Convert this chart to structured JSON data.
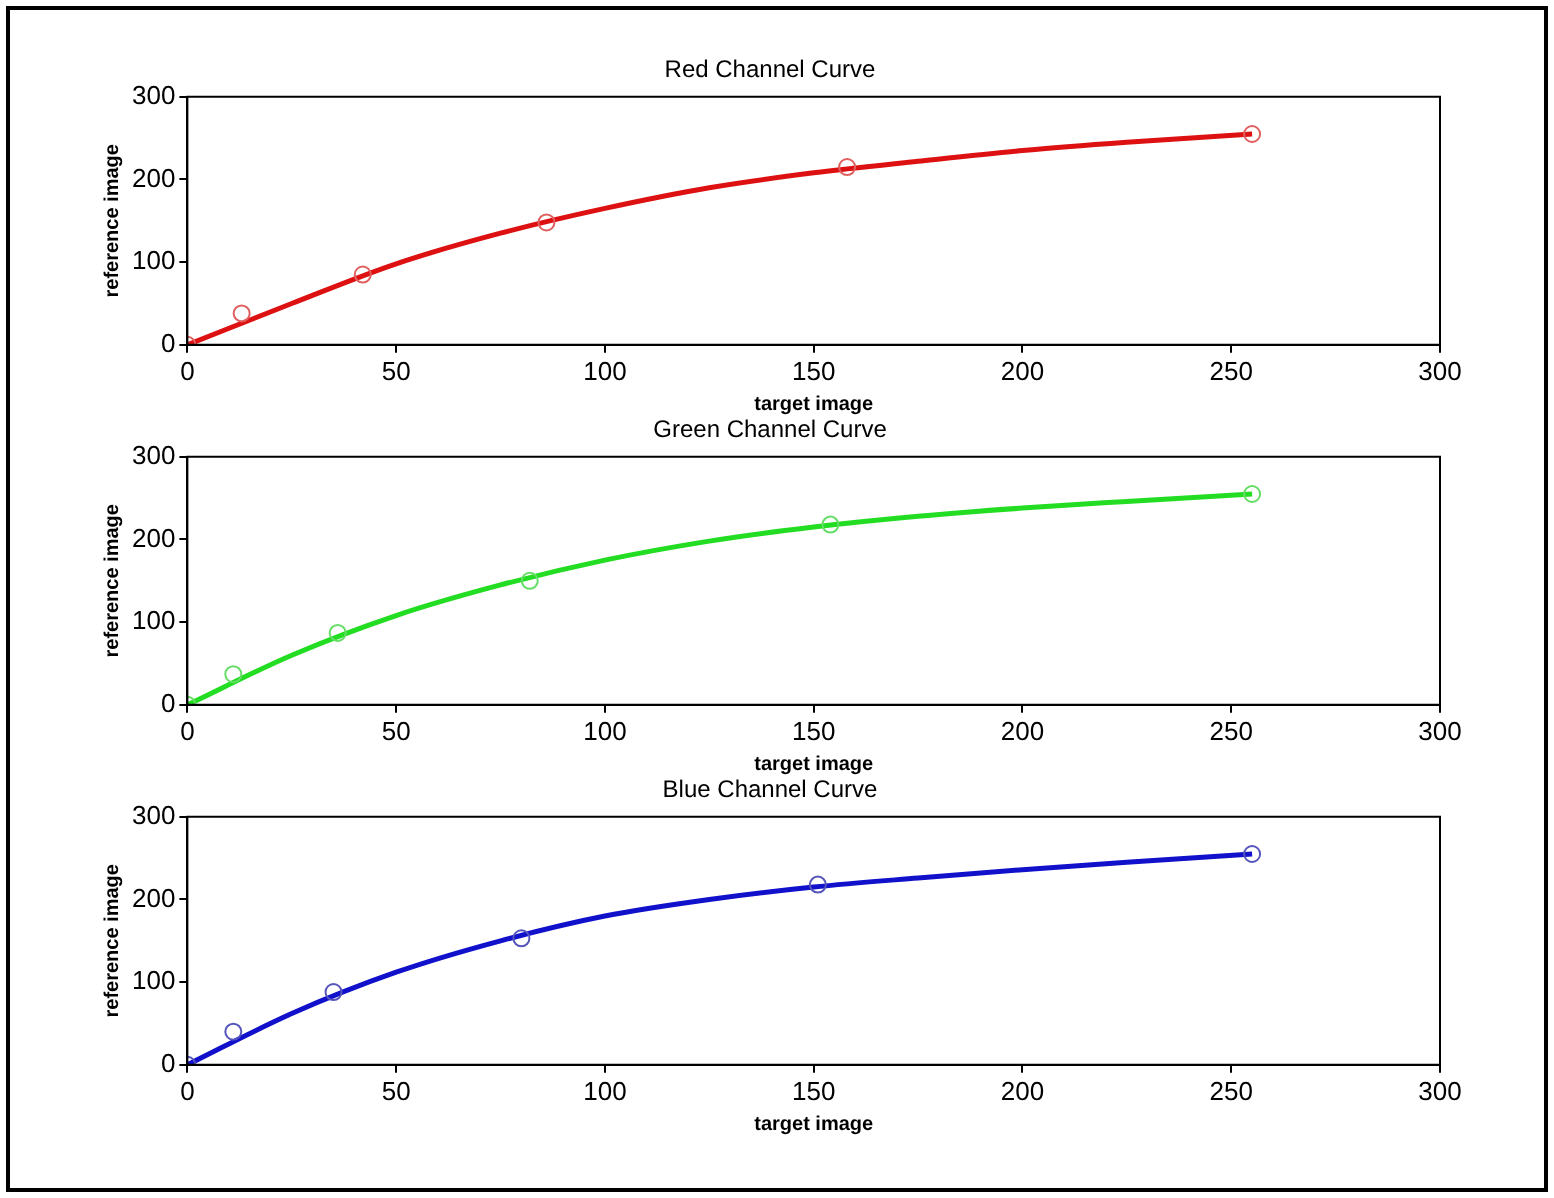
{
  "chart_data": [
    {
      "type": "scatter",
      "title": "Red Channel Curve",
      "xlabel": "target image",
      "ylabel": "reference image",
      "xlim": [
        0,
        300
      ],
      "xticks": [
        0,
        50,
        100,
        150,
        200,
        250,
        300
      ],
      "ylim": [
        0,
        300
      ],
      "yticks": [
        0,
        100,
        200,
        300
      ],
      "series": [
        {
          "type": "scatter",
          "marker": "circle",
          "color": "#e06060",
          "x": [
            0,
            13,
            42,
            86,
            158,
            255
          ],
          "values": [
            0,
            38,
            85,
            148,
            215,
            255
          ]
        },
        {
          "type": "line",
          "marker": "none",
          "line_style": "solid",
          "color": "#dd1111",
          "x": [
            0,
            25,
            50,
            75,
            100,
            125,
            150,
            175,
            200,
            225,
            255
          ],
          "values": [
            0,
            50,
            98,
            135,
            165,
            190,
            208,
            222,
            235,
            245,
            255
          ]
        }
      ]
    },
    {
      "type": "scatter",
      "title": "Green Channel Curve",
      "xlabel": "target image",
      "ylabel": "reference image",
      "xlim": [
        0,
        300
      ],
      "xticks": [
        0,
        50,
        100,
        150,
        200,
        250,
        300
      ],
      "ylim": [
        0,
        300
      ],
      "yticks": [
        0,
        100,
        200,
        300
      ],
      "series": [
        {
          "type": "scatter",
          "marker": "circle",
          "color": "#66dd66",
          "x": [
            0,
            11,
            36,
            82,
            154,
            255
          ],
          "values": [
            0,
            37,
            87,
            150,
            218,
            255
          ]
        },
        {
          "type": "line",
          "marker": "none",
          "line_style": "solid",
          "color": "#22dd22",
          "x": [
            0,
            25,
            50,
            75,
            100,
            125,
            150,
            175,
            200,
            225,
            255
          ],
          "values": [
            0,
            60,
            108,
            145,
            175,
            198,
            215,
            228,
            238,
            246,
            255
          ]
        }
      ]
    },
    {
      "type": "scatter",
      "title": "Blue Channel Curve",
      "xlabel": "target image",
      "ylabel": "reference image",
      "xlim": [
        0,
        300
      ],
      "xticks": [
        0,
        50,
        100,
        150,
        200,
        250,
        300
      ],
      "ylim": [
        0,
        300
      ],
      "yticks": [
        0,
        100,
        200,
        300
      ],
      "series": [
        {
          "type": "scatter",
          "marker": "circle",
          "color": "#5555bb",
          "x": [
            0,
            11,
            35,
            80,
            151,
            255
          ],
          "values": [
            0,
            40,
            88,
            153,
            218,
            255
          ]
        },
        {
          "type": "line",
          "marker": "none",
          "line_style": "solid",
          "color": "#1111cc",
          "x": [
            0,
            25,
            50,
            75,
            100,
            125,
            150,
            175,
            200,
            225,
            255
          ],
          "values": [
            0,
            62,
            112,
            150,
            180,
            200,
            215,
            226,
            236,
            245,
            255
          ]
        }
      ]
    }
  ]
}
